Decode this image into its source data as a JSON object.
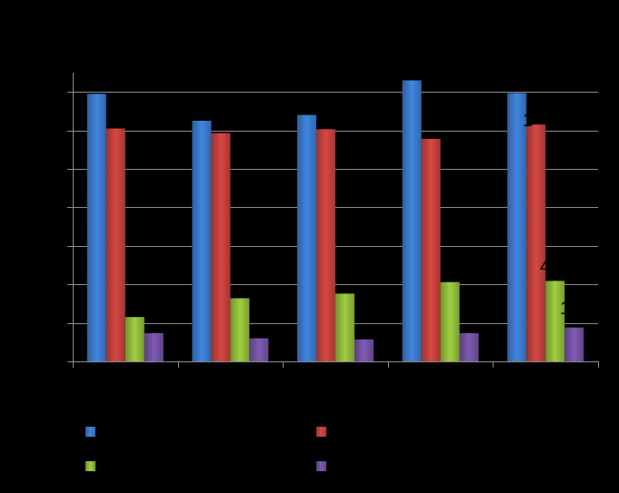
{
  "chart_data": {
    "type": "bar",
    "categories": [
      "",
      "",
      "",
      "",
      ""
    ],
    "ylim": [
      0,
      7.5
    ],
    "grid": true,
    "legend_position": "bottom",
    "series": [
      {
        "color": "#3a78c8",
        "values": [
          6.95,
          6.25,
          6.4,
          7.3,
          6.97
        ]
      },
      {
        "color": "#c0403c",
        "values": [
          6.05,
          5.93,
          6.03,
          5.78,
          6.15
        ]
      },
      {
        "color": "#8fb83a",
        "values": [
          1.15,
          1.64,
          1.76,
          2.06,
          2.09
        ]
      },
      {
        "color": "#7151a0",
        "values": [
          0.73,
          0.6,
          0.57,
          0.73,
          0.88
        ]
      }
    ],
    "annotations": [
      "1",
      "4",
      "1"
    ]
  }
}
